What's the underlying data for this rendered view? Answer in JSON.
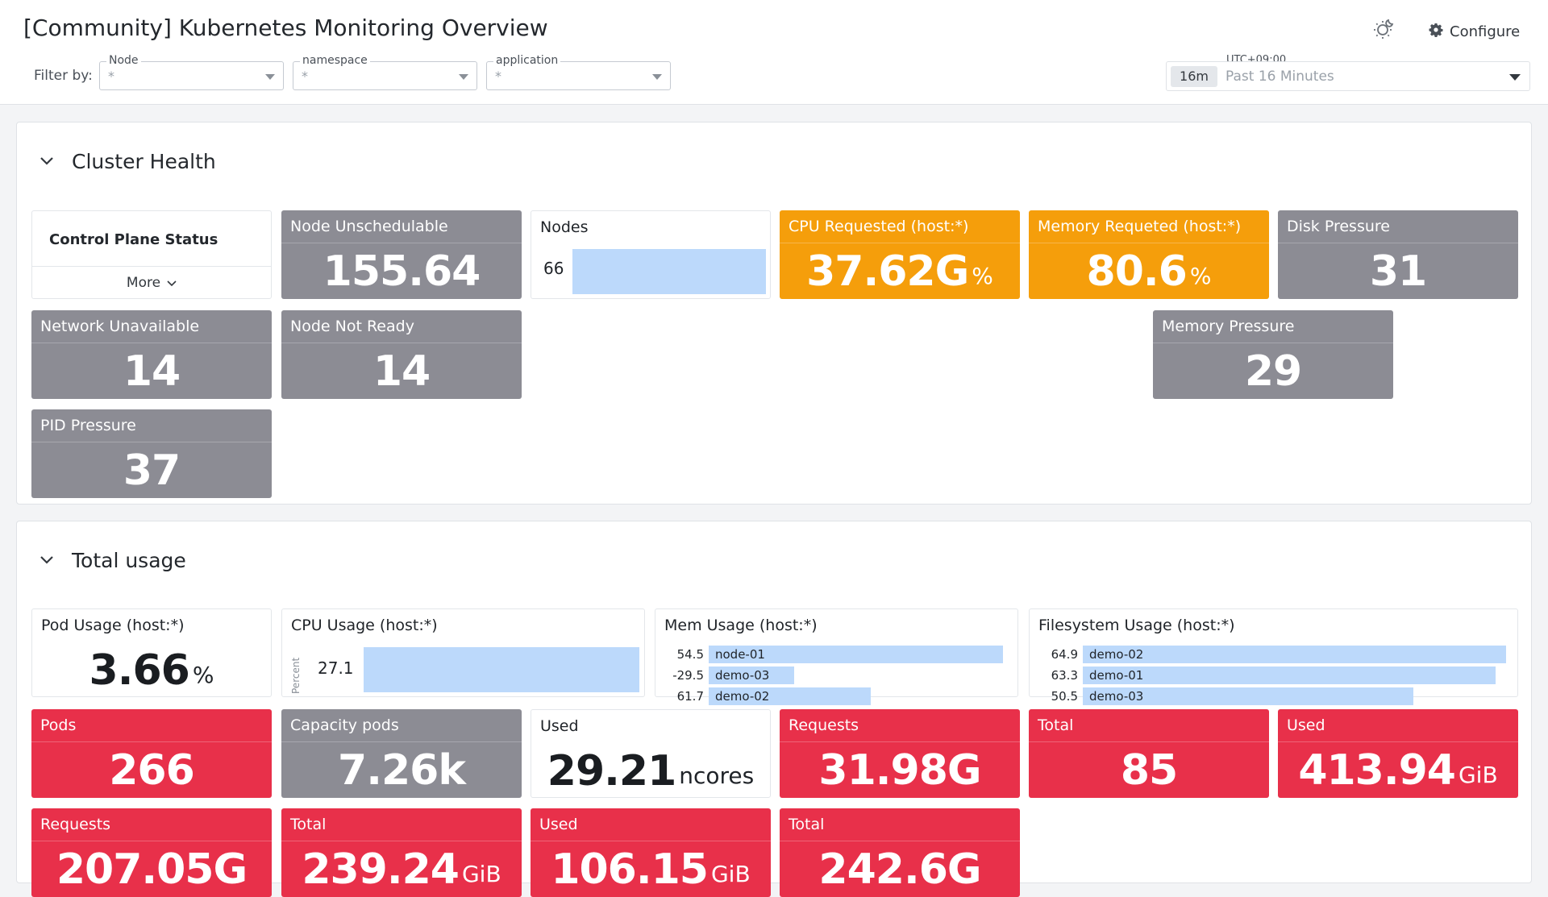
{
  "header": {
    "title": "[Community] Kubernetes Monitoring Overview",
    "configure_label": "Configure",
    "filter_label": "Filter by:",
    "filters": [
      {
        "label": "Node",
        "value": "*"
      },
      {
        "label": "namespace",
        "value": "*"
      },
      {
        "label": "application",
        "value": "*"
      }
    ],
    "timezone": "UTC+09:00",
    "time_badge": "16m",
    "time_range": "Past 16 Minutes"
  },
  "cluster_health": {
    "title": "Cluster Health",
    "control_plane": {
      "title": "Control Plane Status",
      "more_label": "More"
    },
    "node_unschedulable": {
      "title": "Node Unschedulable",
      "value": "155.64"
    },
    "nodes": {
      "title": "Nodes",
      "value": "66",
      "fraction": 1.0
    },
    "cpu_requested": {
      "title": "CPU Requested (host:*)",
      "value": "37.62G",
      "unit": "%"
    },
    "memory_requested": {
      "title": "Memory Requeted (host:*)",
      "value": "80.6",
      "unit": "%"
    },
    "disk_pressure": {
      "title": "Disk Pressure",
      "value": "31"
    },
    "network_unavailable": {
      "title": "Network Unavailable",
      "value": "14"
    },
    "node_not_ready": {
      "title": "Node Not Ready",
      "value": "14"
    },
    "memory_pressure": {
      "title": "Memory Pressure",
      "value": "29"
    },
    "pid_pressure": {
      "title": "PID Pressure",
      "value": "37"
    }
  },
  "total_usage": {
    "title": "Total usage",
    "pod_usage": {
      "title": "Pod Usage (host:*)",
      "value": "3.66",
      "unit": "%"
    },
    "cpu_usage": {
      "title": "CPU Usage (host:*)",
      "axis_label": "Percent",
      "value": "27.1",
      "fraction": 1.0
    },
    "mem_usage": {
      "title": "Mem Usage (host:*)",
      "rows": [
        {
          "value": "54.5",
          "name": "node-01",
          "fraction": 1.0
        },
        {
          "value": "-29.5",
          "name": "demo-03",
          "fraction": 0.29
        },
        {
          "value": "61.7",
          "name": "demo-02",
          "fraction": 0.55
        }
      ]
    },
    "fs_usage": {
      "title": "Filesystem Usage (host:*)",
      "rows": [
        {
          "value": "64.9",
          "name": "demo-02",
          "fraction": 1.0
        },
        {
          "value": "63.3",
          "name": "demo-01",
          "fraction": 0.975
        },
        {
          "value": "50.5",
          "name": "demo-03",
          "fraction": 0.78
        }
      ]
    },
    "pods": {
      "title": "Pods",
      "value": "266"
    },
    "capacity_pods": {
      "title": "Capacity pods",
      "value": "7.26k"
    },
    "cpu_used": {
      "title": "Used",
      "value": "29.21",
      "unit": "ncores"
    },
    "cpu_requests": {
      "title": "Requests",
      "value": "31.98G"
    },
    "cpu_total": {
      "title": "Total",
      "value": "85"
    },
    "mem_used": {
      "title": "Used",
      "value": "413.94",
      "unit": "GiB"
    },
    "mem_requests": {
      "title": "Requests",
      "value": "207.05G"
    },
    "mem_total": {
      "title": "Total",
      "value": "239.24",
      "unit": "GiB"
    },
    "fs_used": {
      "title": "Used",
      "value": "106.15",
      "unit": "GiB"
    },
    "fs_total": {
      "title": "Total",
      "value": "242.6G"
    }
  },
  "colors": {
    "gray": "#8c8c94",
    "orange": "#f59e0b",
    "red": "#e8304a",
    "bar": "#bcd9fb"
  },
  "icons": {
    "theme": "sun-moon-icon",
    "configure": "gear-icon",
    "collapse": "chevron-down-icon",
    "more": "chevron-down-icon"
  }
}
